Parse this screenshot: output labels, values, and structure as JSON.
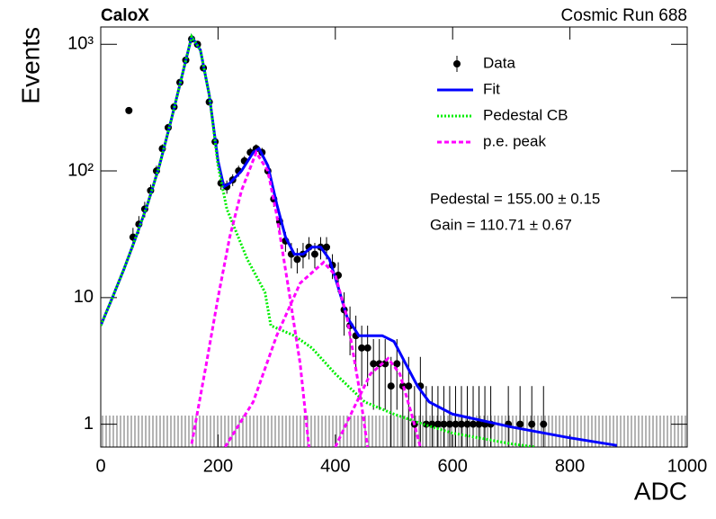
{
  "chart_data": {
    "type": "scatter",
    "title": "CaloX",
    "subtitle": "Cosmic Run 688",
    "x_label": "ADC",
    "y_label": "Events",
    "log_y": true,
    "legend": "upper right",
    "annotations": [
      "Pedestal = 155.00 ± 0.15",
      "Gain = 110.71 ± 0.67"
    ],
    "xlim": [
      0,
      1000
    ],
    "ylim": [
      0.66,
      1370
    ],
    "xticks": [
      0,
      200,
      400,
      600,
      800,
      1000
    ],
    "yticks": [
      1,
      10,
      {
        "value": 100,
        "label": "10²"
      },
      {
        "value": 1000,
        "label": "10³"
      }
    ],
    "series": [
      {
        "name": "Data",
        "type": "scatter",
        "color": "#000000",
        "x": [
          48,
          55,
          65,
          75,
          85,
          95,
          105,
          115,
          125,
          135,
          145,
          155,
          165,
          175,
          185,
          195,
          205,
          215,
          225,
          235,
          245,
          255,
          265,
          275,
          285,
          295,
          305,
          315,
          325,
          335,
          345,
          355,
          365,
          375,
          385,
          395,
          405,
          415,
          425,
          435,
          445,
          455,
          465,
          475,
          485,
          495,
          505,
          515,
          525,
          535,
          545,
          555,
          565,
          575,
          585,
          595,
          605,
          615,
          625,
          635,
          645,
          655,
          665,
          695,
          715,
          735,
          755
        ],
        "values": [
          300,
          30,
          38,
          50,
          70,
          100,
          150,
          220,
          320,
          500,
          750,
          1100,
          1000,
          650,
          350,
          170,
          80,
          75,
          85,
          100,
          120,
          140,
          150,
          140,
          100,
          60,
          40,
          28,
          22,
          20,
          22,
          25,
          22,
          25,
          25,
          18,
          15,
          8,
          6,
          5,
          4,
          4,
          3,
          3,
          3,
          2,
          3,
          2,
          2,
          1,
          2,
          1,
          1,
          1,
          1,
          1,
          1,
          1,
          1,
          1,
          1,
          1,
          1,
          1,
          1,
          1,
          1
        ],
        "errors": [
          17,
          5.5,
          6,
          7,
          8,
          10,
          12,
          15,
          18,
          22,
          27,
          33,
          32,
          25,
          19,
          13,
          9,
          9,
          9,
          10,
          11,
          12,
          12,
          12,
          10,
          8,
          6,
          5,
          5,
          4.5,
          5,
          5,
          5,
          5,
          5,
          4,
          4,
          3,
          2.5,
          2.2,
          2,
          2,
          1.7,
          1.7,
          1.7,
          1.4,
          1.7,
          1.4,
          1.4,
          1,
          1.4,
          1,
          1,
          1,
          1,
          1,
          1,
          1,
          1,
          1,
          1,
          1,
          1,
          1,
          1,
          1,
          1
        ]
      },
      {
        "name": "Fit",
        "type": "line",
        "color": "#0000ff",
        "dash": "solid",
        "x": [
          0,
          20,
          40,
          60,
          80,
          100,
          120,
          140,
          155,
          170,
          185,
          200,
          210,
          220,
          240,
          260,
          270,
          285,
          300,
          315,
          330,
          345,
          360,
          375,
          390,
          405,
          420,
          440,
          460,
          480,
          500,
          520,
          540,
          560,
          600,
          700,
          800,
          880
        ],
        "values": [
          6,
          10,
          17,
          30,
          55,
          110,
          250,
          600,
          1150,
          900,
          400,
          120,
          75,
          80,
          100,
          140,
          150,
          110,
          55,
          30,
          22,
          22,
          25,
          25,
          20,
          12,
          7,
          5,
          5,
          5,
          4.5,
          3,
          2,
          1.5,
          1.2,
          0.95,
          0.78,
          0.68
        ]
      },
      {
        "name": "Pedestal CB",
        "type": "line",
        "color": "#00ee00",
        "dash": "dotted",
        "x": [
          0,
          20,
          40,
          60,
          80,
          100,
          120,
          140,
          155,
          170,
          185,
          200,
          215,
          250,
          280,
          290,
          330,
          360,
          400,
          450,
          500,
          550,
          600,
          700,
          740
        ],
        "values": [
          6,
          10,
          17,
          30,
          55,
          110,
          250,
          600,
          1150,
          900,
          400,
          110,
          50,
          20,
          11,
          6,
          5,
          4,
          2.5,
          1.5,
          1.2,
          1,
          0.85,
          0.7,
          0.66
        ]
      },
      {
        "name": "p.e. peak",
        "type": "line",
        "color": "#ff00ff",
        "dash": "dashed",
        "x": [
          155,
          180,
          200,
          220,
          240,
          265,
          285,
          300,
          320,
          340,
          355,
          null,
          212,
          260,
          300,
          340,
          380,
          400,
          420,
          440,
          455,
          null,
          400,
          430,
          460,
          490,
          510,
          530,
          545
        ],
        "values": [
          0.7,
          3,
          10,
          30,
          70,
          140,
          100,
          45,
          12,
          3,
          0.66,
          null,
          0.66,
          1.5,
          5,
          13,
          19,
          15,
          7,
          2,
          0.66,
          null,
          0.66,
          1.3,
          2.5,
          3.3,
          2.5,
          1.2,
          0.66
        ]
      }
    ]
  }
}
